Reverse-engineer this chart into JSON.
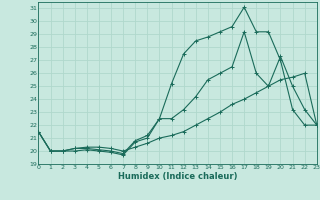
{
  "xlabel": "Humidex (Indice chaleur)",
  "bg_color": "#c8e8df",
  "grid_color": "#b0d8cc",
  "line_color": "#1a6b5a",
  "xlim": [
    0,
    23
  ],
  "ylim": [
    19,
    31.5
  ],
  "xticks": [
    0,
    1,
    2,
    3,
    4,
    5,
    6,
    7,
    8,
    9,
    10,
    11,
    12,
    13,
    14,
    15,
    16,
    17,
    18,
    19,
    20,
    21,
    22,
    23
  ],
  "yticks": [
    19,
    20,
    21,
    22,
    23,
    24,
    25,
    26,
    27,
    28,
    29,
    30,
    31
  ],
  "line1_x": [
    0,
    1,
    2,
    3,
    4,
    5,
    6,
    7,
    8,
    9,
    10,
    11,
    12,
    13,
    14,
    15,
    16,
    17,
    18,
    19,
    20,
    21,
    22,
    23
  ],
  "line1_y": [
    21.5,
    20.0,
    20.0,
    20.0,
    20.1,
    20.0,
    19.9,
    19.7,
    20.7,
    21.0,
    22.5,
    25.2,
    27.5,
    28.5,
    28.8,
    29.2,
    29.6,
    31.1,
    29.2,
    29.2,
    27.0,
    23.2,
    22.0,
    22.0
  ],
  "line2_x": [
    0,
    1,
    2,
    3,
    4,
    5,
    6,
    7,
    8,
    9,
    10,
    11,
    12,
    13,
    14,
    15,
    16,
    17,
    18,
    19,
    20,
    21,
    22,
    23
  ],
  "line2_y": [
    21.5,
    20.0,
    20.0,
    20.2,
    20.2,
    20.1,
    20.0,
    19.8,
    20.8,
    21.2,
    22.5,
    22.5,
    23.2,
    24.2,
    25.5,
    26.0,
    26.5,
    29.2,
    26.0,
    25.0,
    27.3,
    25.0,
    23.2,
    22.0
  ],
  "line3_x": [
    0,
    1,
    2,
    3,
    4,
    5,
    6,
    7,
    8,
    9,
    10,
    11,
    12,
    13,
    14,
    15,
    16,
    17,
    18,
    19,
    20,
    21,
    22,
    23
  ],
  "line3_y": [
    21.5,
    20.0,
    20.0,
    20.2,
    20.3,
    20.3,
    20.2,
    20.0,
    20.3,
    20.6,
    21.0,
    21.2,
    21.5,
    22.0,
    22.5,
    23.0,
    23.6,
    24.0,
    24.5,
    25.0,
    25.5,
    25.7,
    26.0,
    22.0
  ]
}
